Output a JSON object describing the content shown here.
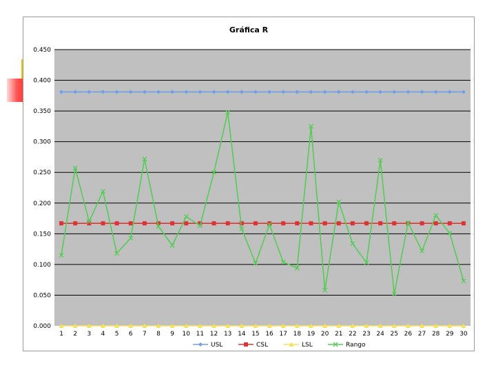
{
  "chart_data": {
    "type": "line",
    "title": "Gráfica R",
    "xlabel": "",
    "ylabel": "",
    "categories": [
      "1",
      "2",
      "3",
      "4",
      "5",
      "6",
      "7",
      "8",
      "9",
      "10",
      "11",
      "12",
      "13",
      "14",
      "15",
      "16",
      "17",
      "18",
      "19",
      "20",
      "21",
      "22",
      "23",
      "24",
      "25",
      "26",
      "27",
      "28",
      "29",
      "30"
    ],
    "ylim": [
      0,
      0.45
    ],
    "yticks": [
      "0.000",
      "0.050",
      "0.100",
      "0.150",
      "0.200",
      "0.250",
      "0.300",
      "0.350",
      "0.400",
      "0.450"
    ],
    "ytick_values": [
      0,
      0.05,
      0.1,
      0.15,
      0.2,
      0.25,
      0.3,
      0.35,
      0.4,
      0.45
    ],
    "grid": true,
    "legend_position": "bottom",
    "plot_background": "#c0c0c0",
    "series": [
      {
        "name": "USL",
        "color": "#6f9fe6",
        "marker": "diamond",
        "values": [
          0.381,
          0.381,
          0.381,
          0.381,
          0.381,
          0.381,
          0.381,
          0.381,
          0.381,
          0.381,
          0.381,
          0.381,
          0.381,
          0.381,
          0.381,
          0.381,
          0.381,
          0.381,
          0.381,
          0.381,
          0.381,
          0.381,
          0.381,
          0.381,
          0.381,
          0.381,
          0.381,
          0.381,
          0.381,
          0.381
        ]
      },
      {
        "name": "CSL",
        "color": "#dd3333",
        "marker": "square",
        "values": [
          0.167,
          0.167,
          0.167,
          0.167,
          0.167,
          0.167,
          0.167,
          0.167,
          0.167,
          0.167,
          0.167,
          0.167,
          0.167,
          0.167,
          0.167,
          0.167,
          0.167,
          0.167,
          0.167,
          0.167,
          0.167,
          0.167,
          0.167,
          0.167,
          0.167,
          0.167,
          0.167,
          0.167,
          0.167,
          0.167
        ]
      },
      {
        "name": "LSL",
        "color": "#f5e25a",
        "marker": "triangle",
        "values": [
          0,
          0,
          0,
          0,
          0,
          0,
          0,
          0,
          0,
          0,
          0,
          0,
          0,
          0,
          0,
          0,
          0,
          0,
          0,
          0,
          0,
          0,
          0,
          0,
          0,
          0,
          0,
          0,
          0,
          0
        ]
      },
      {
        "name": "Rango",
        "color": "#55cc55",
        "marker": "x",
        "values": [
          0.115,
          0.257,
          0.17,
          0.219,
          0.118,
          0.143,
          0.272,
          0.162,
          0.131,
          0.178,
          0.163,
          0.25,
          0.348,
          0.158,
          0.102,
          0.165,
          0.104,
          0.094,
          0.325,
          0.058,
          0.202,
          0.134,
          0.103,
          0.27,
          0.052,
          0.168,
          0.122,
          0.18,
          0.151,
          0.073
        ]
      }
    ]
  }
}
